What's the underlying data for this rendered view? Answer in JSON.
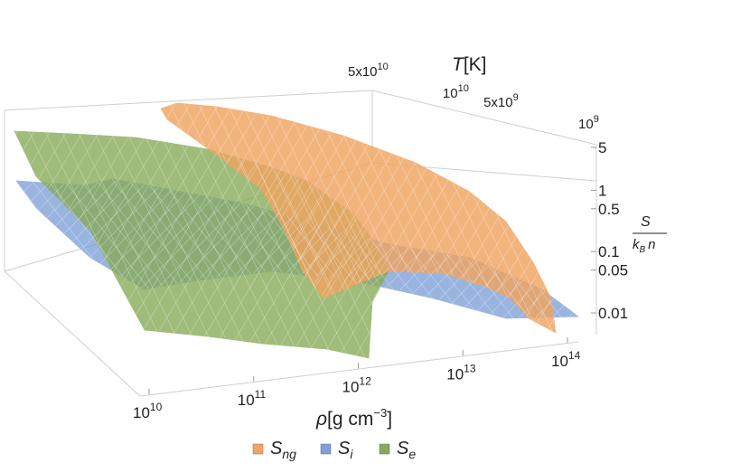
{
  "chart_data": {
    "type": "surface3d",
    "series": [
      {
        "name": "S_ng",
        "color": "#F0A461"
      },
      {
        "name": "S_i",
        "color": "#7E9FD8"
      },
      {
        "name": "S_e",
        "color": "#86AA56"
      }
    ],
    "axes": {
      "x": {
        "quantity": "ρ",
        "unit_label": "[g cm",
        "unit_exponent": "−3",
        "unit_close": "]",
        "scale": "log",
        "range": [
          10000000000.0,
          100000000000000.0
        ],
        "ticks": [
          {
            "value": 10000000000.0,
            "base": "10",
            "exp": "10"
          },
          {
            "value": 100000000000.0,
            "base": "10",
            "exp": "11"
          },
          {
            "value": 1000000000000.0,
            "base": "10",
            "exp": "12"
          },
          {
            "value": 10000000000000.0,
            "base": "10",
            "exp": "13"
          },
          {
            "value": 100000000000000.0,
            "base": "10",
            "exp": "14"
          }
        ]
      },
      "y": {
        "quantity": "T",
        "unit_label": "[K]",
        "scale": "log",
        "range": [
          1000000000.0,
          50000000000.0
        ],
        "ticks": [
          {
            "value": 1000000000.0,
            "base": "10",
            "exp": "9"
          },
          {
            "value": 5000000000.0,
            "base": "5x10",
            "exp": "9"
          },
          {
            "value": 10000000000.0,
            "base": "10",
            "exp": "10"
          },
          {
            "value": 50000000000.0,
            "base": "5x10",
            "exp": "10"
          }
        ]
      },
      "z": {
        "label_numerator": "S",
        "label_denominator_k": "k",
        "label_denominator_sub": "B",
        "label_denominator_n": "n",
        "scale": "log",
        "range": [
          0.01,
          5
        ],
        "ticks": [
          "5",
          "1",
          "0.5",
          "0.1",
          "0.05",
          "0.01"
        ]
      }
    },
    "legend": {
      "placement": "bottom-center",
      "items": [
        {
          "main": "S",
          "sub": "ng",
          "color": "#F0A461"
        },
        {
          "main": "S",
          "sub": "i",
          "color": "#7E9FD8"
        },
        {
          "main": "S",
          "sub": "e",
          "color": "#86AA56"
        }
      ]
    },
    "grid": false,
    "box": true
  }
}
